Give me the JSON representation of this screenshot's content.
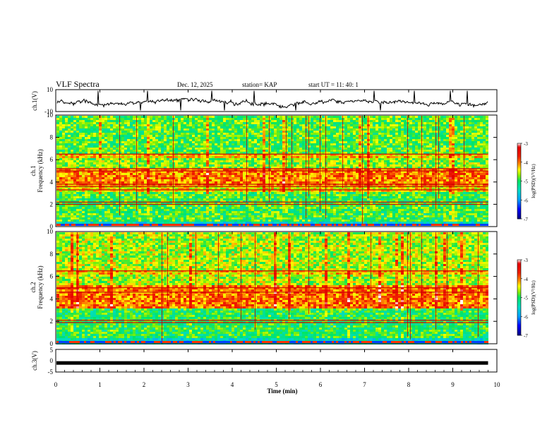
{
  "header": {
    "title": "VLF Spectra",
    "date": "Dec. 12, 2025",
    "station": "station= KAP",
    "start_time": "start UT =  11: 40: 1"
  },
  "chart_data": [
    {
      "type": "line",
      "name": "ch1-voltage",
      "ylabel": "ch.1(V)",
      "ylim": [
        -10,
        10
      ],
      "ytick_labels": [
        "-10",
        "10"
      ],
      "xlim": [
        0,
        10
      ],
      "color": "#000000"
    },
    {
      "type": "heatmap",
      "name": "ch1-spectrogram",
      "ylabel": "ch.1\nFrequency (kHz)",
      "ylim": [
        0,
        10
      ],
      "yticks": [
        0,
        2,
        4,
        6,
        8,
        10
      ],
      "xlim": [
        0,
        10
      ],
      "data_end_min": 9.8,
      "bands_khz": [
        {
          "from": 0,
          "to": 0.6,
          "level": -5.5
        },
        {
          "from": 0.6,
          "to": 3.2,
          "level": -4.9
        },
        {
          "from": 3.2,
          "to": 3.7,
          "level": -4.4
        },
        {
          "from": 3.7,
          "to": 5.3,
          "level": -4.05
        },
        {
          "from": 5.3,
          "to": 6.2,
          "level": -4.7
        },
        {
          "from": 6.2,
          "to": 6.6,
          "level": -4.3
        },
        {
          "from": 6.6,
          "to": 10,
          "level": -4.85
        }
      ],
      "lines_khz": [
        0.2,
        2.0,
        2.2,
        3.3,
        3.6,
        3.8,
        5.0,
        5.2,
        6.5
      ]
    },
    {
      "type": "heatmap",
      "name": "ch2-spectrogram",
      "ylabel": "ch.2\nFrequency (kHz)",
      "ylim": [
        0,
        10
      ],
      "yticks": [
        0,
        2,
        4,
        6,
        8,
        10
      ],
      "xlim": [
        0,
        10
      ],
      "data_end_min": 9.8,
      "bands_khz": [
        {
          "from": 0,
          "to": 0.6,
          "level": -5.5
        },
        {
          "from": 0.6,
          "to": 3.2,
          "level": -5.0
        },
        {
          "from": 3.2,
          "to": 5.3,
          "level": -4.0
        },
        {
          "from": 5.3,
          "to": 6.2,
          "level": -4.6
        },
        {
          "from": 6.2,
          "to": 6.6,
          "level": -4.3
        },
        {
          "from": 6.6,
          "to": 10,
          "level": -4.6
        }
      ],
      "lines_khz": [
        0.2,
        1.9,
        2.1,
        4.6,
        5.0,
        6.5
      ]
    },
    {
      "type": "line",
      "name": "ch3-voltage",
      "ylabel": "ch.3(V)",
      "ylim": [
        -5,
        5
      ],
      "ytick_labels": [
        "-5",
        "0",
        "5"
      ],
      "constant_value": -1,
      "xlim": [
        0,
        10
      ],
      "xlabel": "Time (min)",
      "xticks": [
        0,
        1,
        2,
        3,
        4,
        5,
        6,
        7,
        8,
        9,
        10
      ]
    }
  ],
  "colorbar": {
    "label": "log(PSD)(V²/Hz)",
    "range": [
      -7,
      -3
    ],
    "ticks": [
      "-3",
      "-4",
      "-5",
      "-6",
      "-7"
    ],
    "colors": [
      "#000080",
      "#0000ff",
      "#00c0ff",
      "#00ff80",
      "#80ff00",
      "#ffff00",
      "#ff8000",
      "#ff0000",
      "#ffffff"
    ]
  }
}
